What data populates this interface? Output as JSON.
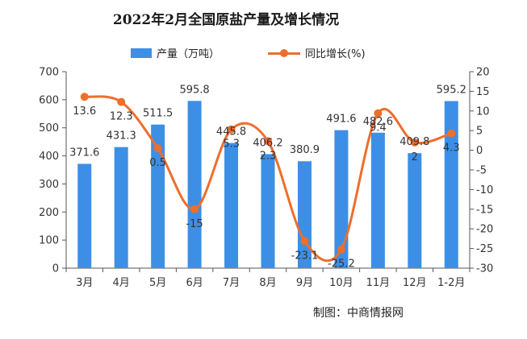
{
  "colors": {
    "bar": "#3d8fe6",
    "line": "#ee6e2c",
    "axis": "#555555",
    "text": "#333333"
  },
  "header": {
    "credit": "制图：中商情报网"
  },
  "chart_data": {
    "type": "bar",
    "title": "2022年2月全国原盐产量及增长情况",
    "categories": [
      "3月",
      "4月",
      "5月",
      "6月",
      "7月",
      "8月",
      "9月",
      "10月",
      "11月",
      "12月",
      "1-2月"
    ],
    "series": [
      {
        "name": "产量（万吨）",
        "type": "bar",
        "axis": "left",
        "values": [
          371.6,
          431.3,
          511.5,
          595.8,
          445.8,
          406.2,
          380.9,
          491.6,
          482.6,
          409.8,
          595.2
        ]
      },
      {
        "name": "同比增长(%)",
        "type": "line",
        "axis": "right",
        "values": [
          13.6,
          12.3,
          0.5,
          -15,
          5.3,
          2.3,
          -23.1,
          -25.2,
          9.4,
          2,
          4.3
        ]
      }
    ],
    "ylim_left": [
      0,
      700
    ],
    "yticks_left": [
      0,
      100,
      200,
      300,
      400,
      500,
      600,
      700
    ],
    "ylim_right": [
      -30,
      20
    ],
    "yticks_right": [
      -30,
      -25,
      -20,
      -15,
      -10,
      -5,
      0,
      5,
      10,
      15,
      20
    ],
    "bar_labels": [
      "371.6",
      "431.3",
      "511.5",
      "595.8",
      "445.8",
      "406.2",
      "380.9",
      "491.6",
      "482.6",
      "409.8",
      "595.2"
    ],
    "line_labels": [
      "13.6",
      "12.3",
      "0.5",
      "-15",
      "5.3",
      "2.3",
      "-23.1",
      "-25.2",
      "9.4",
      "2",
      "4.3"
    ],
    "grid": false,
    "legend_position": "top"
  }
}
